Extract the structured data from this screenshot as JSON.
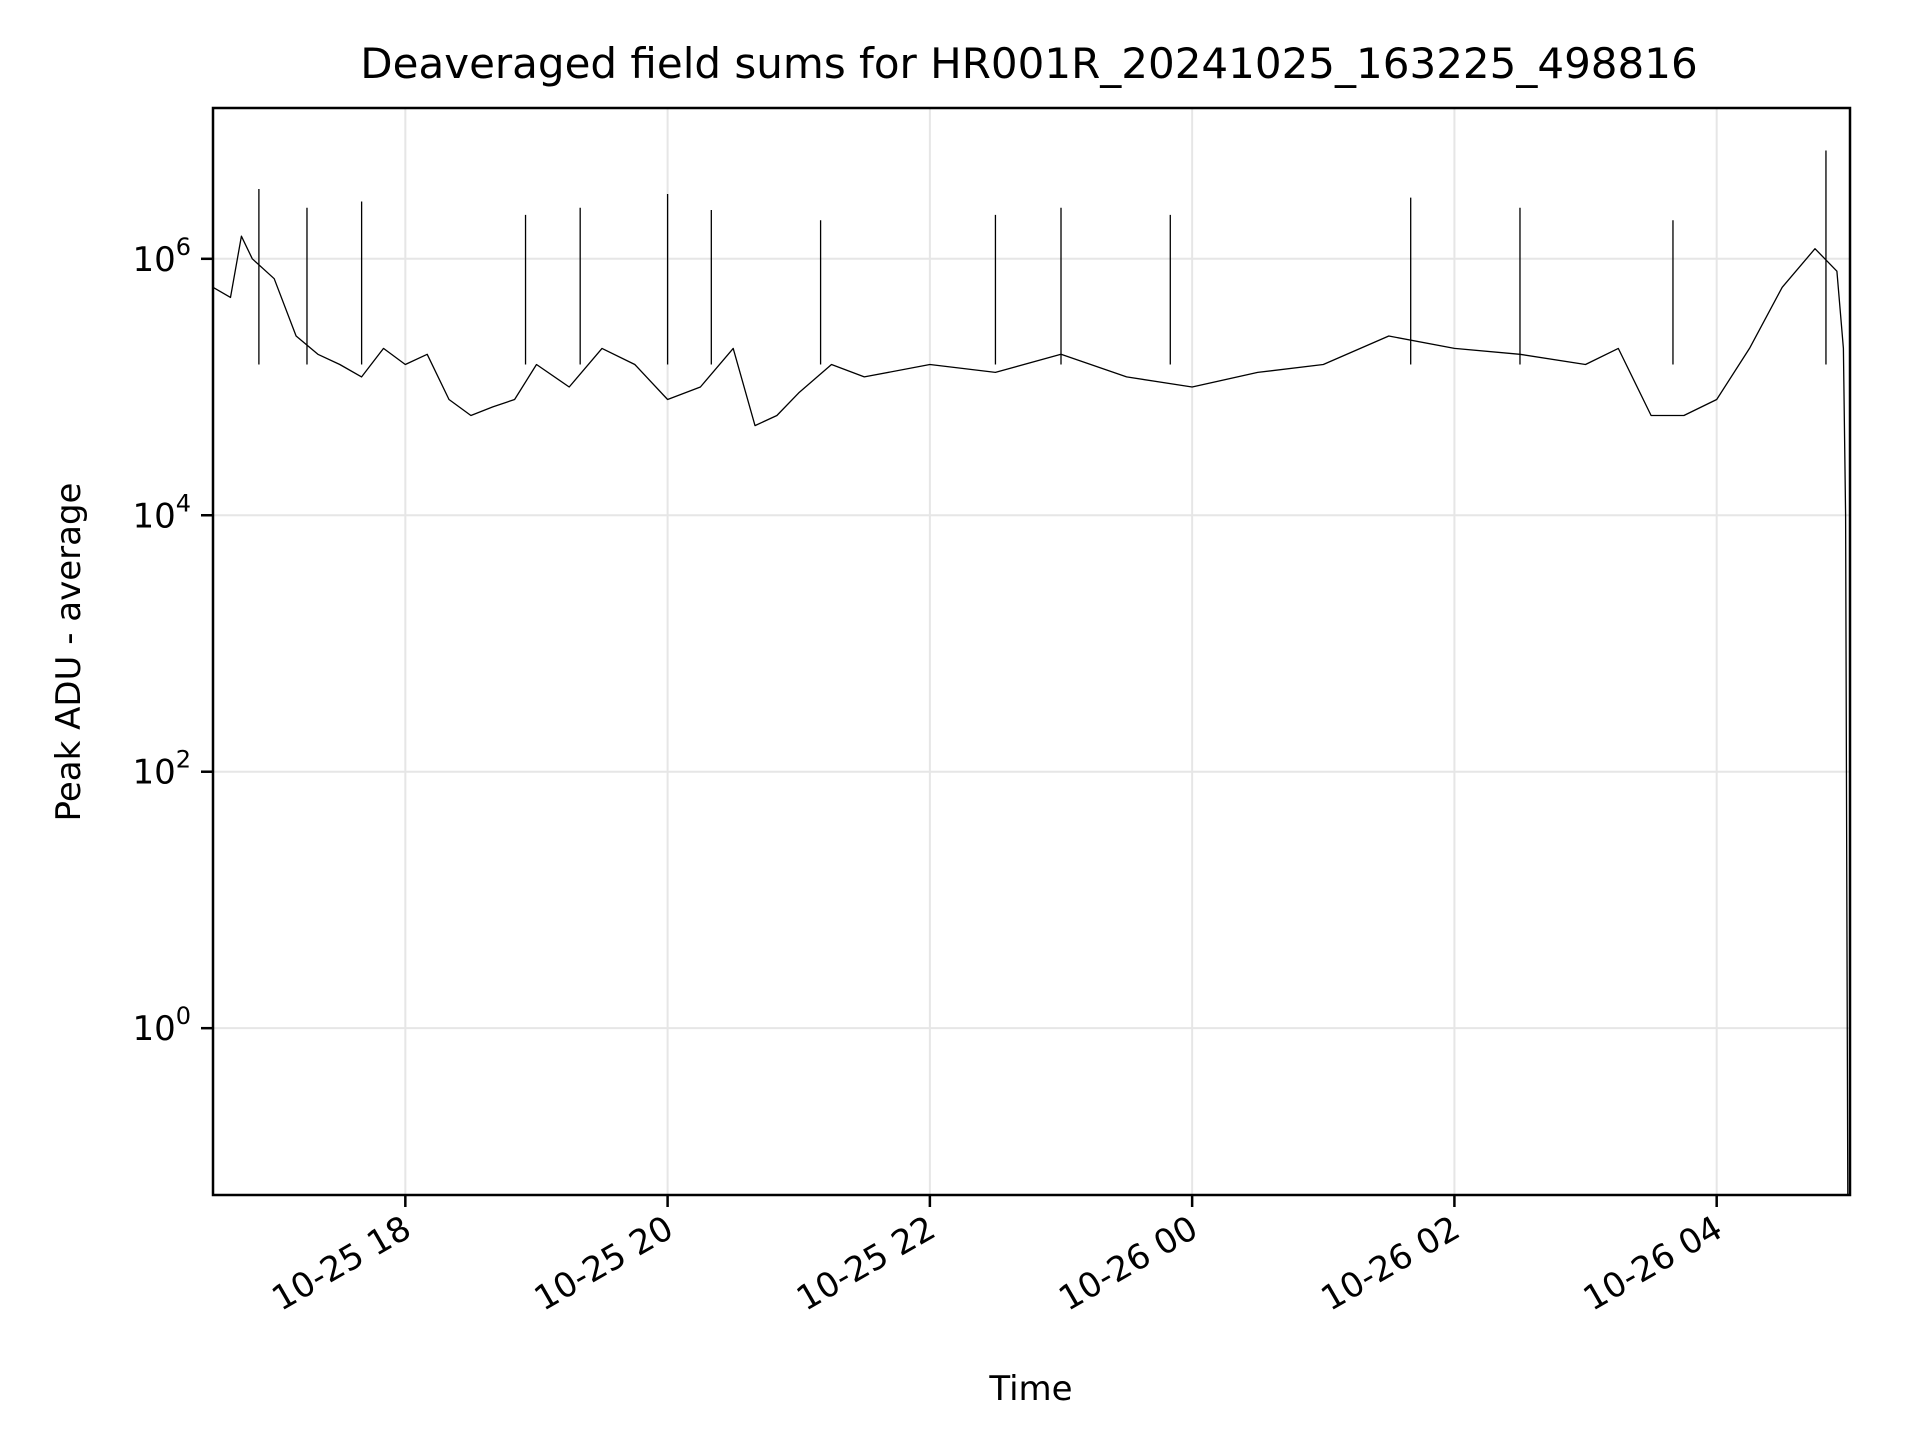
{
  "chart_data": {
    "type": "line",
    "title": "Deaveraged field sums for HR001R_20241025_163225_498816",
    "xlabel": "Time",
    "ylabel": "Peak ADU - average",
    "yscale": "log",
    "grid": true,
    "xlim": [
      "2024-10-25 16:32",
      "2024-10-26 05:01"
    ],
    "ylim": [
      0.05,
      15000000
    ],
    "x_ticks": [
      {
        "value": "2024-10-25 18:00",
        "label": "10-25 18"
      },
      {
        "value": "2024-10-25 20:00",
        "label": "10-25 20"
      },
      {
        "value": "2024-10-25 22:00",
        "label": "10-25 22"
      },
      {
        "value": "2024-10-26 00:00",
        "label": "10-26 00"
      },
      {
        "value": "2024-10-26 02:00",
        "label": "10-26 02"
      },
      {
        "value": "2024-10-26 04:00",
        "label": "10-26 04"
      }
    ],
    "y_ticks": [
      {
        "value": 1,
        "base": "10",
        "exp": "0"
      },
      {
        "value": 100,
        "base": "10",
        "exp": "2"
      },
      {
        "value": 10000,
        "base": "10",
        "exp": "4"
      },
      {
        "value": 1000000,
        "base": "10",
        "exp": "6"
      }
    ],
    "series": [
      {
        "color": "#000000",
        "points": [
          [
            "2024-10-25 16:32",
            600000
          ],
          [
            "2024-10-25 16:40",
            500000
          ],
          [
            "2024-10-25 16:45",
            1500000
          ],
          [
            "2024-10-25 16:50",
            1000000
          ],
          [
            "2024-10-25 17:00",
            700000
          ],
          [
            "2024-10-25 17:10",
            250000
          ],
          [
            "2024-10-25 17:20",
            180000
          ],
          [
            "2024-10-25 17:30",
            150000
          ],
          [
            "2024-10-25 17:40",
            120000
          ],
          [
            "2024-10-25 17:50",
            200000
          ],
          [
            "2024-10-25 18:00",
            150000
          ],
          [
            "2024-10-25 18:10",
            180000
          ],
          [
            "2024-10-25 18:20",
            80000
          ],
          [
            "2024-10-25 18:30",
            60000
          ],
          [
            "2024-10-25 18:40",
            70000
          ],
          [
            "2024-10-25 18:50",
            80000
          ],
          [
            "2024-10-25 19:00",
            150000
          ],
          [
            "2024-10-25 19:15",
            100000
          ],
          [
            "2024-10-25 19:30",
            200000
          ],
          [
            "2024-10-25 19:45",
            150000
          ],
          [
            "2024-10-25 20:00",
            80000
          ],
          [
            "2024-10-25 20:15",
            100000
          ],
          [
            "2024-10-25 20:30",
            200000
          ],
          [
            "2024-10-25 20:40",
            50000
          ],
          [
            "2024-10-25 20:50",
            60000
          ],
          [
            "2024-10-25 21:00",
            90000
          ],
          [
            "2024-10-25 21:15",
            150000
          ],
          [
            "2024-10-25 21:30",
            120000
          ],
          [
            "2024-10-25 22:00",
            150000
          ],
          [
            "2024-10-25 22:30",
            130000
          ],
          [
            "2024-10-25 23:00",
            180000
          ],
          [
            "2024-10-25 23:30",
            120000
          ],
          [
            "2024-10-26 00:00",
            100000
          ],
          [
            "2024-10-26 00:30",
            130000
          ],
          [
            "2024-10-26 01:00",
            150000
          ],
          [
            "2024-10-26 01:30",
            250000
          ],
          [
            "2024-10-26 02:00",
            200000
          ],
          [
            "2024-10-26 02:30",
            180000
          ],
          [
            "2024-10-26 03:00",
            150000
          ],
          [
            "2024-10-26 03:15",
            200000
          ],
          [
            "2024-10-26 03:30",
            60000
          ],
          [
            "2024-10-26 03:45",
            60000
          ],
          [
            "2024-10-26 04:00",
            80000
          ],
          [
            "2024-10-26 04:15",
            200000
          ],
          [
            "2024-10-26 04:30",
            600000
          ],
          [
            "2024-10-26 04:45",
            1200000
          ],
          [
            "2024-10-26 04:55",
            800000
          ],
          [
            "2024-10-26 04:58",
            200000
          ],
          [
            "2024-10-26 04:59",
            10000
          ],
          [
            "2024-10-26 05:00",
            0.05
          ]
        ],
        "spikes": [
          [
            "2024-10-25 16:53",
            3500000
          ],
          [
            "2024-10-25 17:15",
            2500000
          ],
          [
            "2024-10-25 17:40",
            2800000
          ],
          [
            "2024-10-25 18:55",
            2200000
          ],
          [
            "2024-10-25 19:20",
            2500000
          ],
          [
            "2024-10-25 20:00",
            3200000
          ],
          [
            "2024-10-25 20:20",
            2400000
          ],
          [
            "2024-10-25 21:10",
            2000000
          ],
          [
            "2024-10-25 22:30",
            2200000
          ],
          [
            "2024-10-25 23:00",
            2500000
          ],
          [
            "2024-10-25 23:50",
            2200000
          ],
          [
            "2024-10-26 01:40",
            3000000
          ],
          [
            "2024-10-26 02:30",
            2500000
          ],
          [
            "2024-10-26 03:40",
            2000000
          ],
          [
            "2024-10-26 04:50",
            7000000
          ]
        ]
      }
    ]
  }
}
